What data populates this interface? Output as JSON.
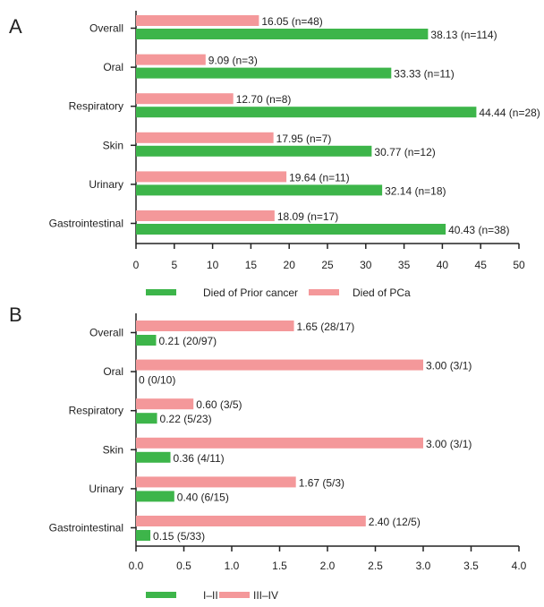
{
  "chart_data": [
    {
      "type": "bar",
      "panel_label": "A",
      "orientation": "horizontal",
      "categories": [
        "Overall",
        "Oral",
        "Respiratory",
        "Skin",
        "Urinary",
        "Gastrointestinal"
      ],
      "series": [
        {
          "name": "Died of PCa",
          "color": "#f4989a",
          "values": [
            16.05,
            9.09,
            12.7,
            17.95,
            19.64,
            18.09
          ],
          "labels": [
            "16.05 (n=48)",
            "9.09 (n=3)",
            "12.70 (n=8)",
            "17.95 (n=7)",
            "19.64 (n=11)",
            "18.09 (n=17)"
          ]
        },
        {
          "name": "Died of Prior cancer",
          "color": "#3db54a",
          "values": [
            38.13,
            33.33,
            44.44,
            30.77,
            32.14,
            40.43
          ],
          "labels": [
            "38.13 (n=114)",
            "33.33 (n=11)",
            "44.44 (n=28)",
            "30.77 (n=12)",
            "32.14 (n=18)",
            "40.43 (n=38)"
          ]
        }
      ],
      "xlim": [
        0,
        50
      ],
      "xticks": [
        "0",
        "5",
        "10",
        "15",
        "20",
        "25",
        "30",
        "35",
        "40",
        "45",
        "50"
      ],
      "legend": [
        "Died of Prior cancer",
        "Died of PCa"
      ],
      "legend_position": "bottom",
      "grid": false
    },
    {
      "type": "bar",
      "panel_label": "B",
      "orientation": "horizontal",
      "categories": [
        "Overall",
        "Oral",
        "Respiratory",
        "Skin",
        "Urinary",
        "Gastrointestinal"
      ],
      "series": [
        {
          "name": "III–IV",
          "color": "#f4989a",
          "values": [
            1.65,
            3.0,
            0.6,
            3.0,
            1.67,
            2.4
          ],
          "labels": [
            "1.65 (28/17)",
            "3.00 (3/1)",
            "0.60 (3/5)",
            "3.00 (3/1)",
            "1.67 (5/3)",
            "2.40 (12/5)"
          ]
        },
        {
          "name": "I–II",
          "color": "#3db54a",
          "values": [
            0.21,
            0,
            0.22,
            0.36,
            0.4,
            0.15
          ],
          "labels": [
            "0.21 (20/97)",
            "0 (0/10)",
            "0.22 (5/23)",
            "0.36 (4/11)",
            "0.40 (6/15)",
            "0.15 (5/33)"
          ]
        }
      ],
      "xlim": [
        0,
        4
      ],
      "xticks": [
        "0.0",
        "0.5",
        "1.0",
        "1.5",
        "2.0",
        "2.5",
        "3.0",
        "3.5",
        "4.0"
      ],
      "legend": [
        "I–II",
        "III–IV"
      ],
      "legend_position": "bottom",
      "grid": false
    }
  ]
}
